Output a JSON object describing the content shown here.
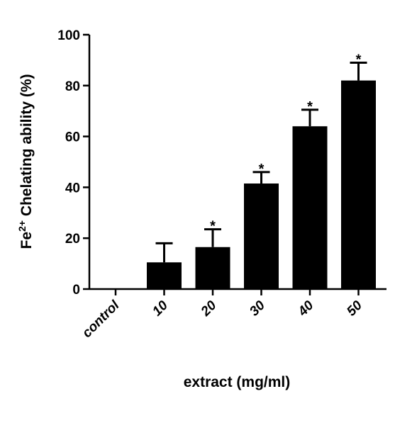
{
  "chart_data": {
    "type": "bar",
    "categories": [
      "control",
      "10",
      "20",
      "30",
      "40",
      "50"
    ],
    "values": [
      0,
      10.5,
      16.5,
      41.5,
      64,
      82
    ],
    "errors": [
      0,
      7.5,
      7,
      4.5,
      6.5,
      7
    ],
    "significance": [
      "",
      "",
      "*",
      "*",
      "*",
      "*"
    ],
    "xlabel": "extract (mg/ml)",
    "ylabel_main": "Fe",
    "ylabel_sup": "2+",
    "ylabel_rest": " Chelating ability (%)",
    "ylim": [
      0,
      100
    ],
    "yticks": [
      "0",
      "20",
      "40",
      "60",
      "80",
      "100"
    ],
    "bar_color": "#000000",
    "grid": false
  }
}
